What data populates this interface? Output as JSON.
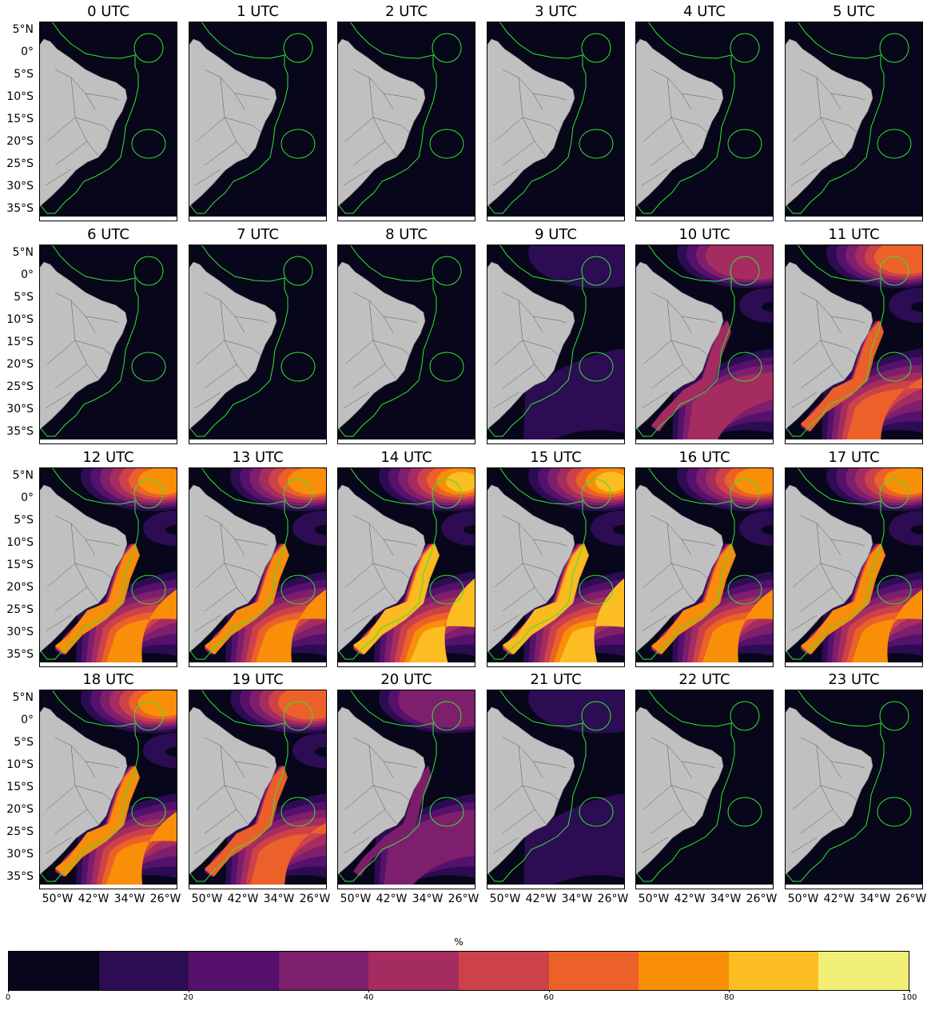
{
  "panels": [
    {
      "title": "0 UTC"
    },
    {
      "title": "1 UTC"
    },
    {
      "title": "2 UTC"
    },
    {
      "title": "3 UTC"
    },
    {
      "title": "4 UTC"
    },
    {
      "title": "5 UTC"
    },
    {
      "title": "6 UTC"
    },
    {
      "title": "7 UTC"
    },
    {
      "title": "8 UTC"
    },
    {
      "title": "9 UTC"
    },
    {
      "title": "10 UTC"
    },
    {
      "title": "11 UTC"
    },
    {
      "title": "12 UTC"
    },
    {
      "title": "13 UTC"
    },
    {
      "title": "14 UTC"
    },
    {
      "title": "15 UTC"
    },
    {
      "title": "16 UTC"
    },
    {
      "title": "17 UTC"
    },
    {
      "title": "18 UTC"
    },
    {
      "title": "19 UTC"
    },
    {
      "title": "20 UTC"
    },
    {
      "title": "21 UTC"
    },
    {
      "title": "22 UTC"
    },
    {
      "title": "23 UTC"
    }
  ],
  "hourly_intensity": [
    0,
    0,
    0,
    0,
    0,
    0,
    0,
    0,
    0,
    0.15,
    0.5,
    0.7,
    0.9,
    0.92,
    0.95,
    0.95,
    0.93,
    0.9,
    0.85,
    0.75,
    0.35,
    0.1,
    0,
    0
  ],
  "lat_ticks": [
    "5°N",
    "0°",
    "5°S",
    "10°S",
    "15°S",
    "20°S",
    "25°S",
    "30°S",
    "35°S"
  ],
  "lon_ticks": [
    "50°W",
    "42°W",
    "34°W",
    "26°W"
  ],
  "colorbar": {
    "label": "%",
    "ticks": [
      "0",
      "20",
      "40",
      "60",
      "80",
      "100"
    ],
    "colors": [
      "#07061a",
      "#2c0c52",
      "#55116b",
      "#7d1f6c",
      "#a52c60",
      "#cd4249",
      "#ec6129",
      "#f98e09",
      "#fbbd22",
      "#f1ef75"
    ]
  },
  "colors": {
    "land": "#c0c0c0",
    "ocean_zero": "#07061a",
    "zone_outline": "#2eea2e",
    "borders": "#555555"
  }
}
